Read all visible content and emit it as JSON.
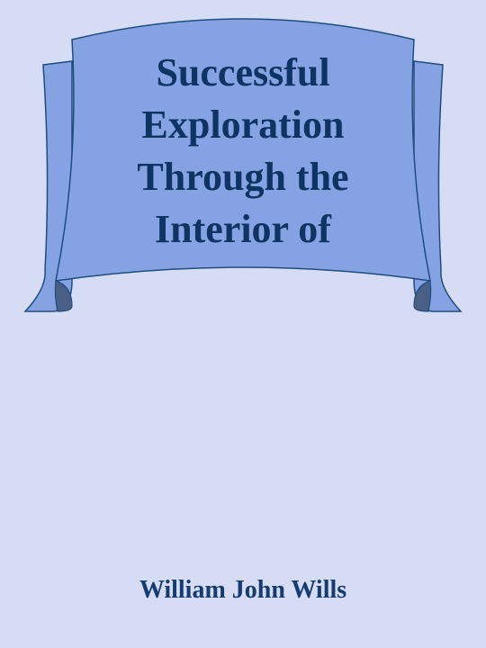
{
  "cover": {
    "title_lines": [
      "Successful",
      "Exploration",
      "Through the",
      "Interior of"
    ],
    "author": "William John Wills"
  },
  "colors": {
    "background": "#d5dcf3",
    "banner_fill": "#85a3e2",
    "banner_fold": "#4a5f86",
    "banner_stroke": "#1f4d80",
    "title_text": "#0e3464",
    "author_text": "#143c72"
  }
}
